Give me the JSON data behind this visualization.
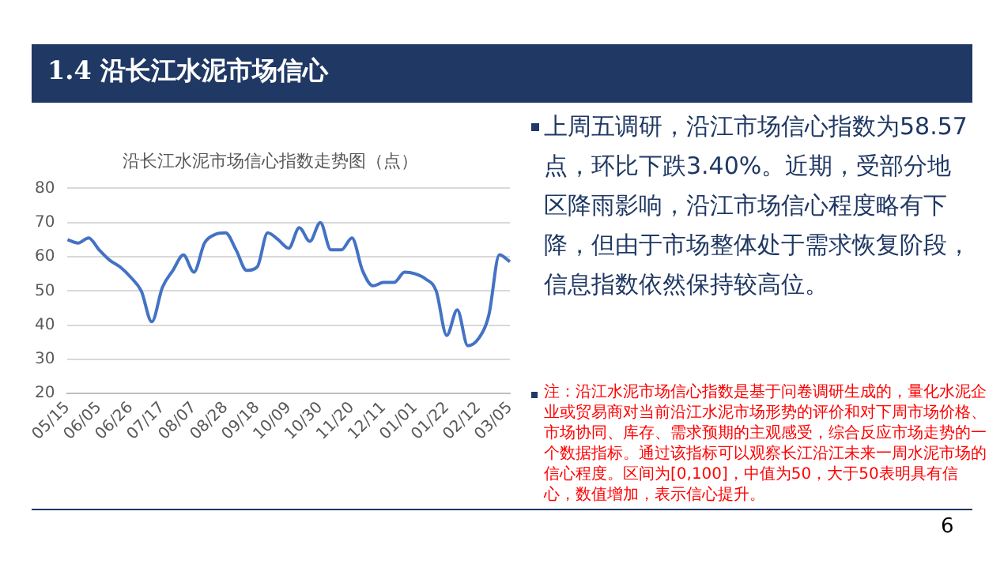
{
  "chart_data": {
    "type": "line",
    "title": "沿长江水泥市场信心指数走势图（点）",
    "annotations": [
      "1.4 沿长江水泥市场信心",
      "上周五调研，沿江市场信心指数为58.57点，环比下跌3.40%。近期，受部分地区降雨影响，沿江市场信心程度略有下降，但由于市场整体处于需求恢复阶段，信息指数依然保持较高位。",
      "注：沿江水泥市场信心指数是基于问卷调研生成的，量化水泥企业或贸易商对当前沿江水泥市场形势的评价和对下周市场价格、市场协同、库存、需求预期的主观感受，综合反应市场走势的一个数据指标。通过该指标可以观察长江沿江未来一周水泥市场的信心程度。区间为[0,100]，中值为50，大于50表明具有信心，数值增加，表示信心提升。",
      "6"
    ],
    "categories": [
      "05/15",
      null,
      null,
      "06/05",
      null,
      null,
      "06/26",
      null,
      null,
      "07/17",
      null,
      null,
      "08/07",
      null,
      null,
      "08/28",
      null,
      null,
      "09/18",
      null,
      null,
      "10/09",
      null,
      null,
      "10/30",
      null,
      null,
      "11/20",
      null,
      null,
      "12/11",
      null,
      null,
      "01/01",
      null,
      null,
      "01/22",
      null,
      null,
      "02/12",
      null,
      null,
      "03/05"
    ],
    "series": [
      {
        "color": "#4472c4",
        "values": [
          65,
          64,
          65.5,
          62,
          59,
          57,
          54,
          50,
          41,
          51,
          56,
          60.5,
          55.5,
          64,
          66.5,
          67,
          62,
          56,
          57,
          67,
          65,
          62.5,
          68.5,
          64.5,
          70,
          62,
          62,
          65.5,
          56,
          51.5,
          52.5,
          52.5,
          55.5,
          55,
          53.5,
          50,
          37,
          44.5,
          34,
          36,
          43,
          60.6,
          58.57
        ]
      }
    ],
    "ylim": [
      20,
      80
    ],
    "yticks": [
      20,
      30,
      40,
      50,
      60,
      70,
      80
    ],
    "grid": "y",
    "legend": false,
    "marker": "none",
    "line_style": "solid"
  }
}
